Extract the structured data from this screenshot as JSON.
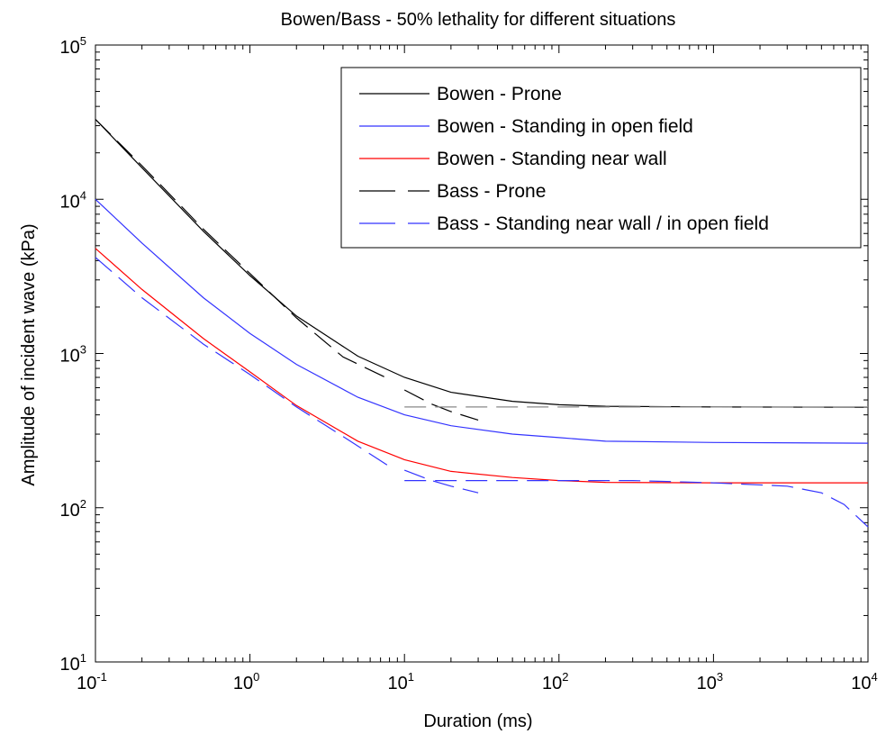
{
  "chart_data": {
    "type": "line",
    "title": "Bowen/Bass - 50% lethality for different situations",
    "xlabel": "Duration (ms)",
    "ylabel": "Amplitude of incident wave (kPa)",
    "xscale": "log",
    "yscale": "log",
    "xlim": [
      0.1,
      10000
    ],
    "ylim": [
      10,
      100000
    ],
    "x_ticks": [
      {
        "base": "10",
        "exp": "-1",
        "value": 0.1
      },
      {
        "base": "10",
        "exp": "0",
        "value": 1
      },
      {
        "base": "10",
        "exp": "1",
        "value": 10
      },
      {
        "base": "10",
        "exp": "2",
        "value": 100
      },
      {
        "base": "10",
        "exp": "3",
        "value": 1000
      },
      {
        "base": "10",
        "exp": "4",
        "value": 10000
      }
    ],
    "y_ticks": [
      {
        "base": "10",
        "exp": "1",
        "value": 10
      },
      {
        "base": "10",
        "exp": "2",
        "value": 100
      },
      {
        "base": "10",
        "exp": "3",
        "value": 1000
      },
      {
        "base": "10",
        "exp": "4",
        "value": 10000
      },
      {
        "base": "10",
        "exp": "5",
        "value": 100000
      }
    ],
    "grid": false,
    "legend_position": "top-right",
    "series": [
      {
        "name": "Bowen - Prone",
        "color": "#000000",
        "dash": "solid",
        "points": [
          [
            0.1,
            33000
          ],
          [
            0.2,
            16000
          ],
          [
            0.5,
            6200
          ],
          [
            1,
            3200
          ],
          [
            2,
            1750
          ],
          [
            5,
            960
          ],
          [
            10,
            700
          ],
          [
            20,
            560
          ],
          [
            50,
            490
          ],
          [
            100,
            465
          ],
          [
            200,
            455
          ],
          [
            1000,
            450
          ],
          [
            10000,
            448
          ]
        ]
      },
      {
        "name": "Bowen - Standing in open field",
        "color": "#3333ff",
        "dash": "solid",
        "points": [
          [
            0.1,
            10000
          ],
          [
            0.2,
            5200
          ],
          [
            0.5,
            2300
          ],
          [
            1,
            1350
          ],
          [
            2,
            850
          ],
          [
            5,
            520
          ],
          [
            10,
            400
          ],
          [
            20,
            340
          ],
          [
            50,
            300
          ],
          [
            100,
            285
          ],
          [
            200,
            270
          ],
          [
            1000,
            265
          ],
          [
            10000,
            262
          ]
        ]
      },
      {
        "name": "Bowen - Standing near wall",
        "color": "#ff0000",
        "dash": "solid",
        "points": [
          [
            0.1,
            4800
          ],
          [
            0.2,
            2600
          ],
          [
            0.5,
            1250
          ],
          [
            1,
            760
          ],
          [
            2,
            460
          ],
          [
            5,
            270
          ],
          [
            10,
            205
          ],
          [
            20,
            172
          ],
          [
            50,
            157
          ],
          [
            100,
            150
          ],
          [
            200,
            146
          ],
          [
            1000,
            145
          ],
          [
            10000,
            145
          ]
        ]
      },
      {
        "name": "Bass - Prone",
        "color": "#000000",
        "dash": "dashed",
        "segments": [
          [
            [
              0.1,
              33000
            ],
            [
              0.2,
              16500
            ],
            [
              0.5,
              6400
            ],
            [
              1,
              3300
            ],
            [
              2,
              1700
            ],
            [
              4,
              950
            ],
            [
              8,
              680
            ]
          ],
          [
            [
              10,
              580
            ],
            [
              15,
              470
            ],
            [
              20,
              420
            ],
            [
              30,
              370
            ]
          ]
        ]
      },
      {
        "name": "",
        "color": "#888888",
        "dash": "dashed",
        "points": [
          [
            10,
            450
          ],
          [
            100,
            450
          ],
          [
            1000,
            450
          ],
          [
            10000,
            450
          ]
        ]
      },
      {
        "name": "Bass - Standing near wall / in open field",
        "color": "#3333ff",
        "dash": "dashed",
        "segments": [
          [
            [
              0.1,
              4200
            ],
            [
              0.2,
              2300
            ],
            [
              0.5,
              1150
            ],
            [
              1,
              730
            ],
            [
              2,
              450
            ],
            [
              4,
              290
            ],
            [
              8,
              185
            ]
          ],
          [
            [
              10,
              175
            ],
            [
              15,
              150
            ],
            [
              20,
              138
            ],
            [
              30,
              125
            ]
          ],
          [
            [
              10,
              150
            ],
            [
              30,
              150
            ],
            [
              100,
              150
            ],
            [
              300,
              150
            ],
            [
              1000,
              145
            ],
            [
              3000,
              138
            ],
            [
              5000,
              125
            ],
            [
              7000,
              105
            ],
            [
              10000,
              75
            ]
          ]
        ]
      }
    ]
  }
}
